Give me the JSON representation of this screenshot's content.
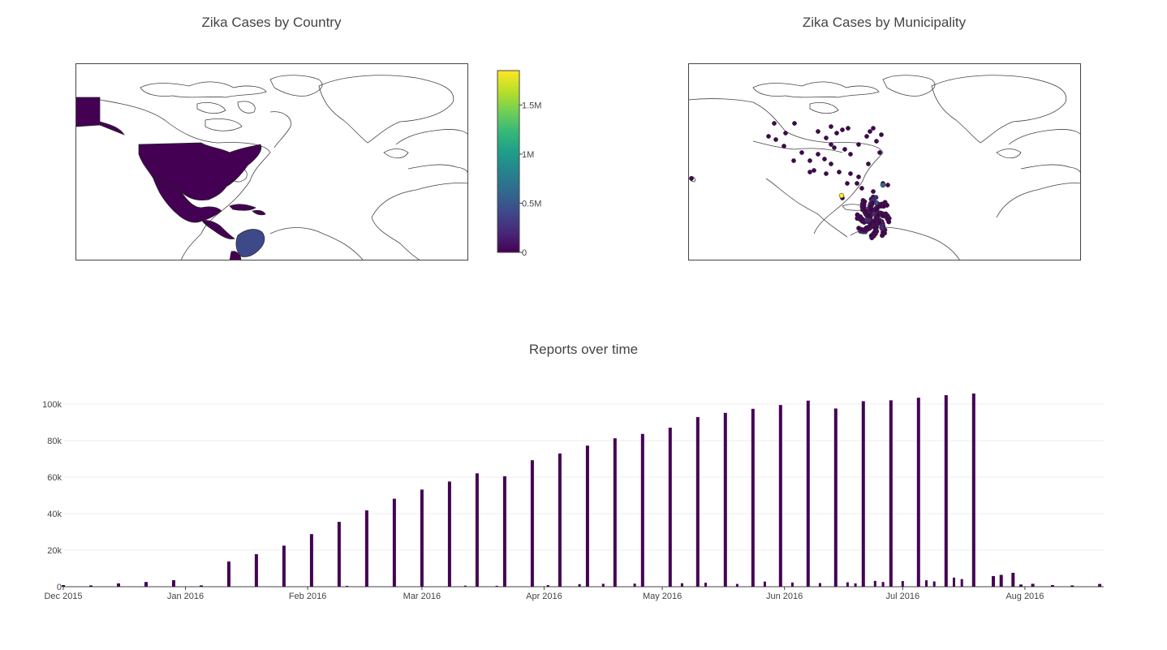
{
  "titles": {
    "country_map": "Zika Cases by Country",
    "municipality_map": "Zika Cases by Municipality",
    "reports": "Reports over time"
  },
  "colors": {
    "bar": "#440154",
    "map_outline": "#444444",
    "grid": "#eeeeee",
    "viridis": [
      "#440154",
      "#482878",
      "#3e4989",
      "#31688e",
      "#26828e",
      "#1f9e89",
      "#35b779",
      "#6ece58",
      "#b5de2b",
      "#fde725"
    ]
  },
  "colorbar": {
    "ticks": [
      {
        "label": "1.5M",
        "value": 1500000
      },
      {
        "label": "1M",
        "value": 1000000
      },
      {
        "label": "0.5M",
        "value": 500000
      },
      {
        "label": "0",
        "value": 0
      }
    ],
    "range": [
      0,
      1850000
    ]
  },
  "country_map": {
    "filled_countries": [
      {
        "name": "Alaska (United States)",
        "level": 0.0
      },
      {
        "name": "United States",
        "level": 0.0
      },
      {
        "name": "Mexico",
        "level": 0.0
      },
      {
        "name": "Central America",
        "level": 0.0
      },
      {
        "name": "Caribbean",
        "level": 0.0
      },
      {
        "name": "Colombia",
        "level": 0.3
      },
      {
        "name": "Ecuador",
        "level": 0.0
      }
    ]
  },
  "chart_data": {
    "type": "bar",
    "title": "Reports over time",
    "xlabel": "",
    "ylabel": "",
    "x_ticks": [
      "Dec 2015",
      "Jan 2016",
      "Feb 2016",
      "Mar 2016",
      "Apr 2016",
      "May 2016",
      "Jun 2016",
      "Jul 2016",
      "Aug 2016"
    ],
    "y_ticks": [
      "0",
      "20k",
      "40k",
      "60k",
      "80k",
      "100k"
    ],
    "ylim": [
      0,
      108000
    ],
    "xlim": [
      "2015-12-01",
      "2016-08-21"
    ],
    "grid": true,
    "x": [
      "2015-12-01",
      "2015-12-08",
      "2015-12-15",
      "2015-12-22",
      "2015-12-29",
      "2016-01-05",
      "2016-01-12",
      "2016-01-19",
      "2016-01-26",
      "2016-02-02",
      "2016-02-09",
      "2016-02-16",
      "2016-02-23",
      "2016-03-01",
      "2016-03-08",
      "2016-03-15",
      "2016-03-22",
      "2016-03-29",
      "2016-04-05",
      "2016-04-12",
      "2016-04-19",
      "2016-04-26",
      "2016-05-03",
      "2016-05-10",
      "2016-05-17",
      "2016-05-24",
      "2016-05-31",
      "2016-06-07",
      "2016-06-14",
      "2016-06-21",
      "2016-06-28",
      "2016-07-05",
      "2016-07-12",
      "2016-07-19",
      "2016-07-24",
      "2016-07-26",
      "2016-07-29",
      "2016-07-31",
      "2016-08-03",
      "2016-08-08",
      "2016-08-13",
      "2016-08-20"
    ],
    "values": [
      900,
      700,
      1800,
      2600,
      3600,
      700,
      13800,
      17800,
      22500,
      28800,
      35500,
      41800,
      48200,
      53200,
      57600,
      62100,
      60500,
      69300,
      73000,
      77300,
      81300,
      83700,
      87100,
      92900,
      95200,
      97400,
      99500,
      101900,
      97600,
      101600,
      102100,
      103500,
      104900,
      105800,
      5800,
      6500,
      7600,
      1200,
      1600,
      900,
      700,
      1500
    ],
    "minor_bars": [
      {
        "x": "2016-02-09",
        "value": 400
      },
      {
        "x": "2016-02-11",
        "value": 500
      },
      {
        "x": "2016-03-12",
        "value": 600
      },
      {
        "x": "2016-03-20",
        "value": 500
      },
      {
        "x": "2016-04-02",
        "value": 900
      },
      {
        "x": "2016-04-10",
        "value": 1400
      },
      {
        "x": "2016-04-16",
        "value": 1600
      },
      {
        "x": "2016-04-24",
        "value": 1700
      },
      {
        "x": "2016-05-06",
        "value": 1900
      },
      {
        "x": "2016-05-12",
        "value": 2200
      },
      {
        "x": "2016-05-20",
        "value": 1500
      },
      {
        "x": "2016-05-27",
        "value": 2800
      },
      {
        "x": "2016-06-03",
        "value": 2300
      },
      {
        "x": "2016-06-10",
        "value": 2000
      },
      {
        "x": "2016-06-17",
        "value": 2400
      },
      {
        "x": "2016-06-19",
        "value": 1800
      },
      {
        "x": "2016-06-24",
        "value": 3200
      },
      {
        "x": "2016-06-26",
        "value": 2600
      },
      {
        "x": "2016-07-01",
        "value": 3100
      },
      {
        "x": "2016-07-07",
        "value": 3500
      },
      {
        "x": "2016-07-09",
        "value": 2900
      },
      {
        "x": "2016-07-14",
        "value": 5000
      },
      {
        "x": "2016-07-16",
        "value": 4200
      }
    ]
  }
}
